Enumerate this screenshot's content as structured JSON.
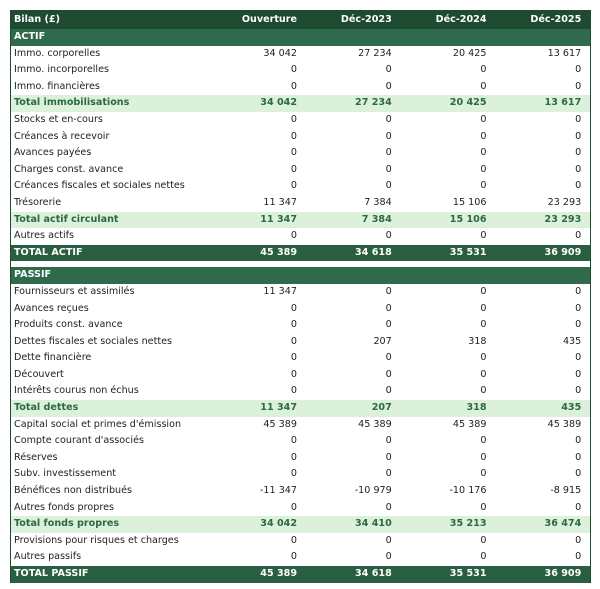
{
  "header": {
    "title": "Bilan (£)",
    "columns": [
      "Ouverture",
      "Déc-2023",
      "Déc-2024",
      "Déc-2025"
    ]
  },
  "colors": {
    "header": "#1d4a30",
    "section": "#2e6a4b",
    "total_bg": "#dcf1dc",
    "total_text": "#2a6a3e"
  },
  "actif": {
    "label": "ACTIF",
    "rows": [
      {
        "type": "item",
        "label": "Immo. corporelles",
        "values": [
          "34 042",
          "27 234",
          "20 425",
          "13 617"
        ]
      },
      {
        "type": "item",
        "label": "Immo. incorporelles",
        "values": [
          "0",
          "0",
          "0",
          "0"
        ]
      },
      {
        "type": "item",
        "label": "Immo. financières",
        "values": [
          "0",
          "0",
          "0",
          "0"
        ]
      },
      {
        "type": "tot",
        "label": "Total immobilisations",
        "values": [
          "34 042",
          "27 234",
          "20 425",
          "13 617"
        ]
      },
      {
        "type": "item",
        "label": "Stocks et en-cours",
        "values": [
          "0",
          "0",
          "0",
          "0"
        ]
      },
      {
        "type": "item",
        "label": "Créances à recevoir",
        "values": [
          "0",
          "0",
          "0",
          "0"
        ]
      },
      {
        "type": "item",
        "label": "Avances payées",
        "values": [
          "0",
          "0",
          "0",
          "0"
        ]
      },
      {
        "type": "item",
        "label": "Charges const. avance",
        "values": [
          "0",
          "0",
          "0",
          "0"
        ]
      },
      {
        "type": "item",
        "label": "Créances fiscales et sociales nettes",
        "values": [
          "0",
          "0",
          "0",
          "0"
        ]
      },
      {
        "type": "item",
        "label": "Trésorerie",
        "values": [
          "11 347",
          "7 384",
          "15 106",
          "23 293"
        ]
      },
      {
        "type": "tot",
        "label": "Total actif circulant",
        "values": [
          "11 347",
          "7 384",
          "15 106",
          "23 293"
        ]
      },
      {
        "type": "item",
        "label": "Autres actifs",
        "values": [
          "0",
          "0",
          "0",
          "0"
        ]
      },
      {
        "type": "grand",
        "label": "TOTAL ACTIF",
        "values": [
          "45 389",
          "34 618",
          "35 531",
          "36 909"
        ]
      }
    ]
  },
  "passif": {
    "label": "PASSIF",
    "rows": [
      {
        "type": "item",
        "label": "Fournisseurs et assimilés",
        "values": [
          "11 347",
          "0",
          "0",
          "0"
        ]
      },
      {
        "type": "item",
        "label": "Avances reçues",
        "values": [
          "0",
          "0",
          "0",
          "0"
        ]
      },
      {
        "type": "item",
        "label": "Produits const. avance",
        "values": [
          "0",
          "0",
          "0",
          "0"
        ]
      },
      {
        "type": "item",
        "label": "Dettes fiscales et sociales nettes",
        "values": [
          "0",
          "207",
          "318",
          "435"
        ]
      },
      {
        "type": "item",
        "label": "Dette financière",
        "values": [
          "0",
          "0",
          "0",
          "0"
        ]
      },
      {
        "type": "item",
        "label": "Découvert",
        "values": [
          "0",
          "0",
          "0",
          "0"
        ]
      },
      {
        "type": "item",
        "label": "Intérêts courus non échus",
        "values": [
          "0",
          "0",
          "0",
          "0"
        ]
      },
      {
        "type": "tot",
        "label": "Total dettes",
        "values": [
          "11 347",
          "207",
          "318",
          "435"
        ]
      },
      {
        "type": "item",
        "label": "Capital social et primes d'émission",
        "values": [
          "45 389",
          "45 389",
          "45 389",
          "45 389"
        ]
      },
      {
        "type": "item",
        "label": "Compte courant d'associés",
        "values": [
          "0",
          "0",
          "0",
          "0"
        ]
      },
      {
        "type": "item",
        "label": "Réserves",
        "values": [
          "0",
          "0",
          "0",
          "0"
        ]
      },
      {
        "type": "item",
        "label": "Subv. investissement",
        "values": [
          "0",
          "0",
          "0",
          "0"
        ]
      },
      {
        "type": "item",
        "label": "Bénéfices non distribués",
        "values": [
          "-11 347",
          "-10 979",
          "-10 176",
          "-8 915"
        ]
      },
      {
        "type": "item",
        "label": "Autres fonds propres",
        "values": [
          "0",
          "0",
          "0",
          "0"
        ]
      },
      {
        "type": "tot",
        "label": "Total fonds propres",
        "values": [
          "34 042",
          "34 410",
          "35 213",
          "36 474"
        ]
      },
      {
        "type": "item",
        "label": "Provisions pour risques et charges",
        "values": [
          "0",
          "0",
          "0",
          "0"
        ]
      },
      {
        "type": "item",
        "label": "Autres passifs",
        "values": [
          "0",
          "0",
          "0",
          "0"
        ]
      },
      {
        "type": "grand",
        "label": "TOTAL PASSIF",
        "values": [
          "45 389",
          "34 618",
          "35 531",
          "36 909"
        ]
      }
    ]
  }
}
